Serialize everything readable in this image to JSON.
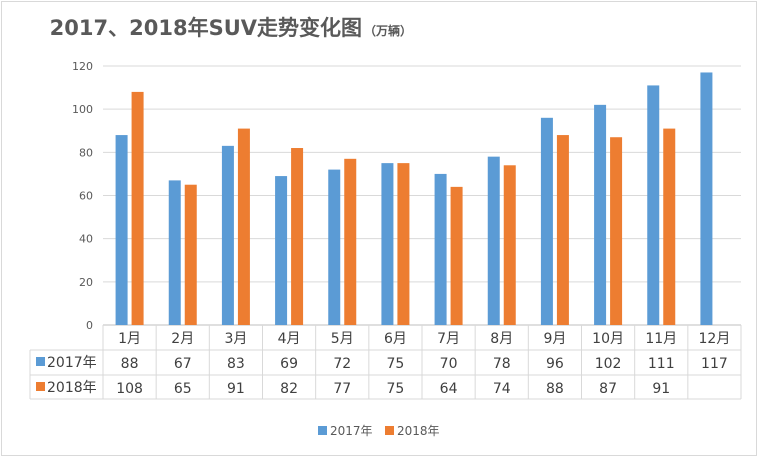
{
  "chart_data": {
    "type": "bar",
    "title": "2017、2018年SUV走势变化图",
    "subtitle": "（万辆）",
    "categories": [
      "1月",
      "2月",
      "3月",
      "4月",
      "5月",
      "6月",
      "7月",
      "8月",
      "9月",
      "10月",
      "11月",
      "12月"
    ],
    "series": [
      {
        "name": "2017年",
        "color": "#5b9bd5",
        "values": [
          88,
          67,
          83,
          69,
          72,
          75,
          70,
          78,
          96,
          102,
          111,
          117
        ]
      },
      {
        "name": "2018年",
        "color": "#ed7d31",
        "values": [
          108,
          65,
          91,
          82,
          77,
          75,
          64,
          74,
          88,
          87,
          91,
          null
        ]
      }
    ],
    "ylim": [
      0,
      120
    ],
    "yticks": [
      0,
      20,
      40,
      60,
      80,
      100,
      120
    ],
    "grid": true,
    "data_table": true,
    "legend": "bottom"
  }
}
